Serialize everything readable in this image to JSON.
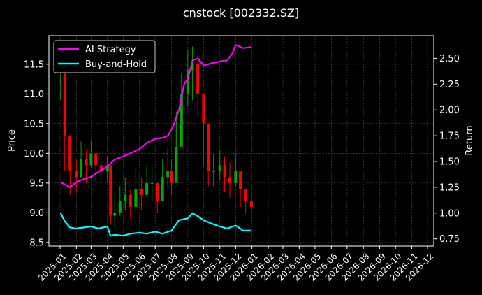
{
  "chart_data": {
    "type": "line",
    "title": "cnstock [002332.SZ]",
    "xlabel": "",
    "ylabel_left": "Price",
    "ylabel_right": "Return",
    "x_ticks": [
      "2025-01",
      "2025-02",
      "2025-03",
      "2025-04",
      "2025-05",
      "2025-06",
      "2025-07",
      "2025-08",
      "2025-09",
      "2025-10",
      "2025-11",
      "2025-12",
      "2026-01",
      "2026-02",
      "2026-03",
      "2026-04",
      "2026-05",
      "2026-06",
      "2026-07",
      "2026-08",
      "2026-09",
      "2026-10",
      "2026-11",
      "2026-12"
    ],
    "y_left_ticks": [
      8.5,
      9.0,
      9.5,
      10.0,
      10.5,
      11.0,
      11.5
    ],
    "y_left_lim": [
      8.44,
      11.98
    ],
    "y_right_ticks": [
      0.75,
      1.0,
      1.25,
      1.5,
      1.75,
      2.0,
      2.25,
      2.5
    ],
    "y_right_lim": [
      0.68,
      2.72
    ],
    "grid": true,
    "legend_position": "top-left",
    "colors": {
      "up": "#00aa00",
      "down": "#ff0000",
      "ai": "#ff00ff",
      "bh": "#00ffff"
    },
    "price": {
      "name": "002332.SZ candles",
      "dates": [
        "2025-01-02",
        "2025-01-10",
        "2025-01-20",
        "2025-02-01",
        "2025-02-10",
        "2025-02-20",
        "2025-03-01",
        "2025-03-10",
        "2025-03-20",
        "2025-04-01",
        "2025-04-07",
        "2025-04-15",
        "2025-04-25",
        "2025-05-05",
        "2025-05-15",
        "2025-05-25",
        "2025-06-05",
        "2025-06-15",
        "2025-06-25",
        "2025-07-05",
        "2025-07-15",
        "2025-07-25",
        "2025-08-01",
        "2025-08-10",
        "2025-08-20",
        "2025-09-01",
        "2025-09-10",
        "2025-09-20",
        "2025-10-01",
        "2025-10-10",
        "2025-10-20",
        "2025-11-01",
        "2025-11-10",
        "2025-11-20",
        "2025-12-01",
        "2025-12-10",
        "2025-12-20",
        "2025-12-31"
      ],
      "close": [
        11.6,
        10.3,
        9.7,
        9.6,
        9.9,
        9.8,
        10.0,
        9.8,
        9.7,
        9.8,
        8.95,
        9.0,
        9.2,
        9.3,
        9.1,
        9.4,
        9.3,
        9.5,
        9.5,
        9.2,
        9.6,
        9.7,
        9.5,
        10.1,
        11.0,
        11.4,
        11.5,
        11.0,
        10.5,
        9.7,
        9.7,
        9.8,
        9.6,
        9.5,
        9.7,
        9.4,
        9.2,
        9.1
      ],
      "high": [
        11.75,
        10.6,
        9.95,
        9.9,
        10.2,
        10.05,
        10.2,
        10.0,
        9.9,
        9.95,
        9.2,
        9.35,
        9.45,
        9.6,
        9.4,
        9.75,
        9.6,
        9.8,
        9.8,
        9.5,
        9.9,
        10.1,
        9.9,
        10.7,
        11.35,
        11.75,
        11.8,
        11.45,
        10.95,
        10.0,
        10.0,
        10.05,
        9.95,
        9.85,
        10.0,
        9.7,
        9.4,
        9.3
      ],
      "low": [
        10.9,
        9.7,
        9.3,
        9.35,
        9.6,
        9.5,
        9.75,
        9.55,
        9.45,
        9.5,
        8.8,
        8.75,
        8.95,
        9.05,
        8.9,
        9.1,
        9.05,
        9.25,
        9.2,
        9.0,
        9.3,
        9.4,
        9.3,
        9.7,
        10.3,
        10.8,
        10.9,
        10.6,
        9.8,
        9.45,
        9.45,
        9.55,
        9.35,
        9.25,
        9.45,
        9.1,
        9.0,
        9.0
      ]
    },
    "series": [
      {
        "name": "AI Strategy",
        "x": [
          "2025-01-02",
          "2025-01-20",
          "2025-02-01",
          "2025-02-15",
          "2025-03-01",
          "2025-03-15",
          "2025-04-01",
          "2025-04-15",
          "2025-05-01",
          "2025-05-15",
          "2025-06-01",
          "2025-06-15",
          "2025-07-01",
          "2025-07-15",
          "2025-07-25",
          "2025-08-05",
          "2025-08-15",
          "2025-08-25",
          "2025-09-01",
          "2025-09-10",
          "2025-09-20",
          "2025-10-01",
          "2025-10-15",
          "2025-11-01",
          "2025-11-15",
          "2025-11-25",
          "2025-12-01",
          "2025-12-15",
          "2025-12-31"
        ],
        "y": [
          1.3,
          1.25,
          1.3,
          1.33,
          1.35,
          1.4,
          1.45,
          1.52,
          1.55,
          1.58,
          1.62,
          1.68,
          1.72,
          1.73,
          1.75,
          1.85,
          2.0,
          2.25,
          2.3,
          2.48,
          2.5,
          2.43,
          2.45,
          2.47,
          2.48,
          2.55,
          2.63,
          2.6,
          2.61
        ]
      },
      {
        "name": "Buy-and-Hold",
        "x": [
          "2025-01-02",
          "2025-01-10",
          "2025-01-20",
          "2025-02-01",
          "2025-02-15",
          "2025-03-01",
          "2025-03-15",
          "2025-04-01",
          "2025-04-07",
          "2025-04-15",
          "2025-05-01",
          "2025-05-15",
          "2025-06-01",
          "2025-06-15",
          "2025-07-01",
          "2025-07-15",
          "2025-08-01",
          "2025-08-15",
          "2025-09-01",
          "2025-09-10",
          "2025-09-20",
          "2025-10-01",
          "2025-10-15",
          "2025-11-01",
          "2025-11-15",
          "2025-12-01",
          "2025-12-15",
          "2025-12-31"
        ],
        "y": [
          1.0,
          0.92,
          0.86,
          0.85,
          0.86,
          0.87,
          0.85,
          0.87,
          0.78,
          0.79,
          0.78,
          0.8,
          0.81,
          0.8,
          0.82,
          0.8,
          0.83,
          0.93,
          0.95,
          1.0,
          0.97,
          0.93,
          0.9,
          0.87,
          0.85,
          0.88,
          0.83,
          0.83
        ]
      }
    ]
  }
}
